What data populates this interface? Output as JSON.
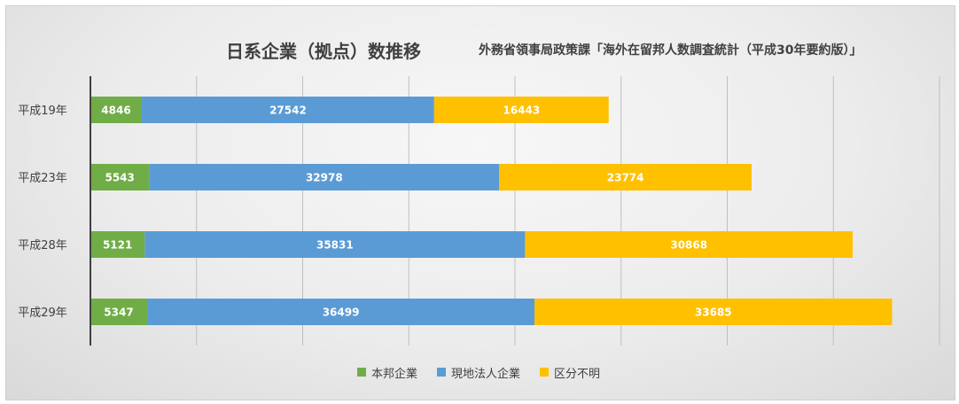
{
  "title": "日系企業（拠点）数推移",
  "subtitle": "外務省領事局政策課「海外在留邦人数調査統計（平成30年要約版）」",
  "chart_data": {
    "type": "bar",
    "orientation": "horizontal",
    "stacked": true,
    "title": "日系企業（拠点）数推移",
    "subtitle": "外務省領事局政策課「海外在留邦人数調査統計（平成30年要約版）」",
    "categories": [
      "平成19年",
      "平成23年",
      "平成28年",
      "平成29年"
    ],
    "series": [
      {
        "name": "本邦企業",
        "color": "#70ad47",
        "values": [
          4846,
          5543,
          5121,
          5347
        ]
      },
      {
        "name": "現地法人企業",
        "color": "#5b9bd5",
        "values": [
          27542,
          32978,
          35831,
          36499
        ]
      },
      {
        "name": "区分不明",
        "color": "#ffc000",
        "values": [
          16443,
          23774,
          30868,
          33685
        ]
      }
    ],
    "xlim": [
      0,
      80000
    ],
    "grid": true,
    "legend_position": "bottom",
    "data_labels": true
  }
}
